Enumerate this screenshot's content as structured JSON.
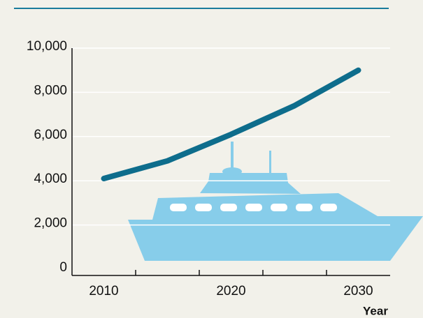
{
  "chart_data": {
    "type": "line",
    "x": [
      2010,
      2015,
      2020,
      2025,
      2030
    ],
    "series": [
      {
        "color": "#0e6d8c",
        "values": [
          4100,
          4900,
          6100,
          7400,
          9000
        ]
      }
    ],
    "xlim": [
      2007.5,
      2032.5
    ],
    "xticks": [
      2010,
      2020,
      2030
    ],
    "xminorticks": [
      2012.5,
      2017.5,
      2022.5,
      2027.5
    ],
    "ylim": [
      0,
      10000
    ],
    "yticks": [
      {
        "value": 0,
        "label": "0"
      },
      {
        "value": 2000,
        "label": "2,000"
      },
      {
        "value": 4000,
        "label": "4,000"
      },
      {
        "value": 6000,
        "label": "6,000"
      },
      {
        "value": 8000,
        "label": "8,000"
      },
      {
        "value": 10000,
        "label": "10,000"
      }
    ],
    "xlabel": "Year",
    "grid": true
  }
}
